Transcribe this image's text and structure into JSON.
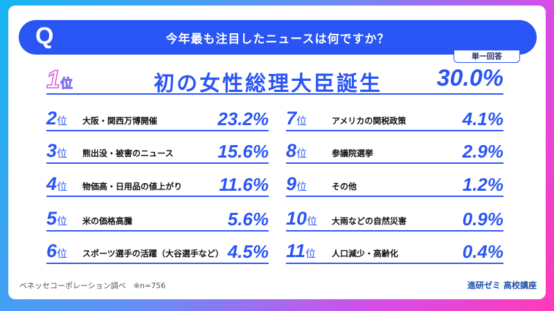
{
  "question": {
    "mark": "Q",
    "text": "今年最も注目したニュースは何ですか？"
  },
  "badge": "単一回答",
  "rank_suffix": "位",
  "top": {
    "rank": "1",
    "label": "初の女性総理大臣誕生",
    "percent": "30.0%"
  },
  "left": [
    {
      "rank": "2",
      "label": "大阪・関西万博開催",
      "percent": "23.2%"
    },
    {
      "rank": "3",
      "label": "熊出没・被害のニュース",
      "percent": "15.6%"
    },
    {
      "rank": "4",
      "label": "物価高・日用品の値上がり",
      "percent": "11.6%"
    },
    {
      "rank": "5",
      "label": "米の価格高騰",
      "percent": "5.6%"
    },
    {
      "rank": "6",
      "label": "スポーツ選手の活躍（大谷選手など）",
      "percent": "4.5%"
    }
  ],
  "right": [
    {
      "rank": "7",
      "label": "アメリカの関税政策",
      "percent": "4.1%"
    },
    {
      "rank": "8",
      "label": "参議院選挙",
      "percent": "2.9%"
    },
    {
      "rank": "9",
      "label": "その他",
      "percent": "1.2%"
    },
    {
      "rank": "10",
      "label": "大雨などの自然災害",
      "percent": "0.9%"
    },
    {
      "rank": "11",
      "label": "人口減少・高齢化",
      "percent": "0.4%"
    }
  ],
  "footer": {
    "source": "ベネッセコーポレーション調べ　※n=756",
    "brand": "進研ゼミ 高校講座"
  }
}
